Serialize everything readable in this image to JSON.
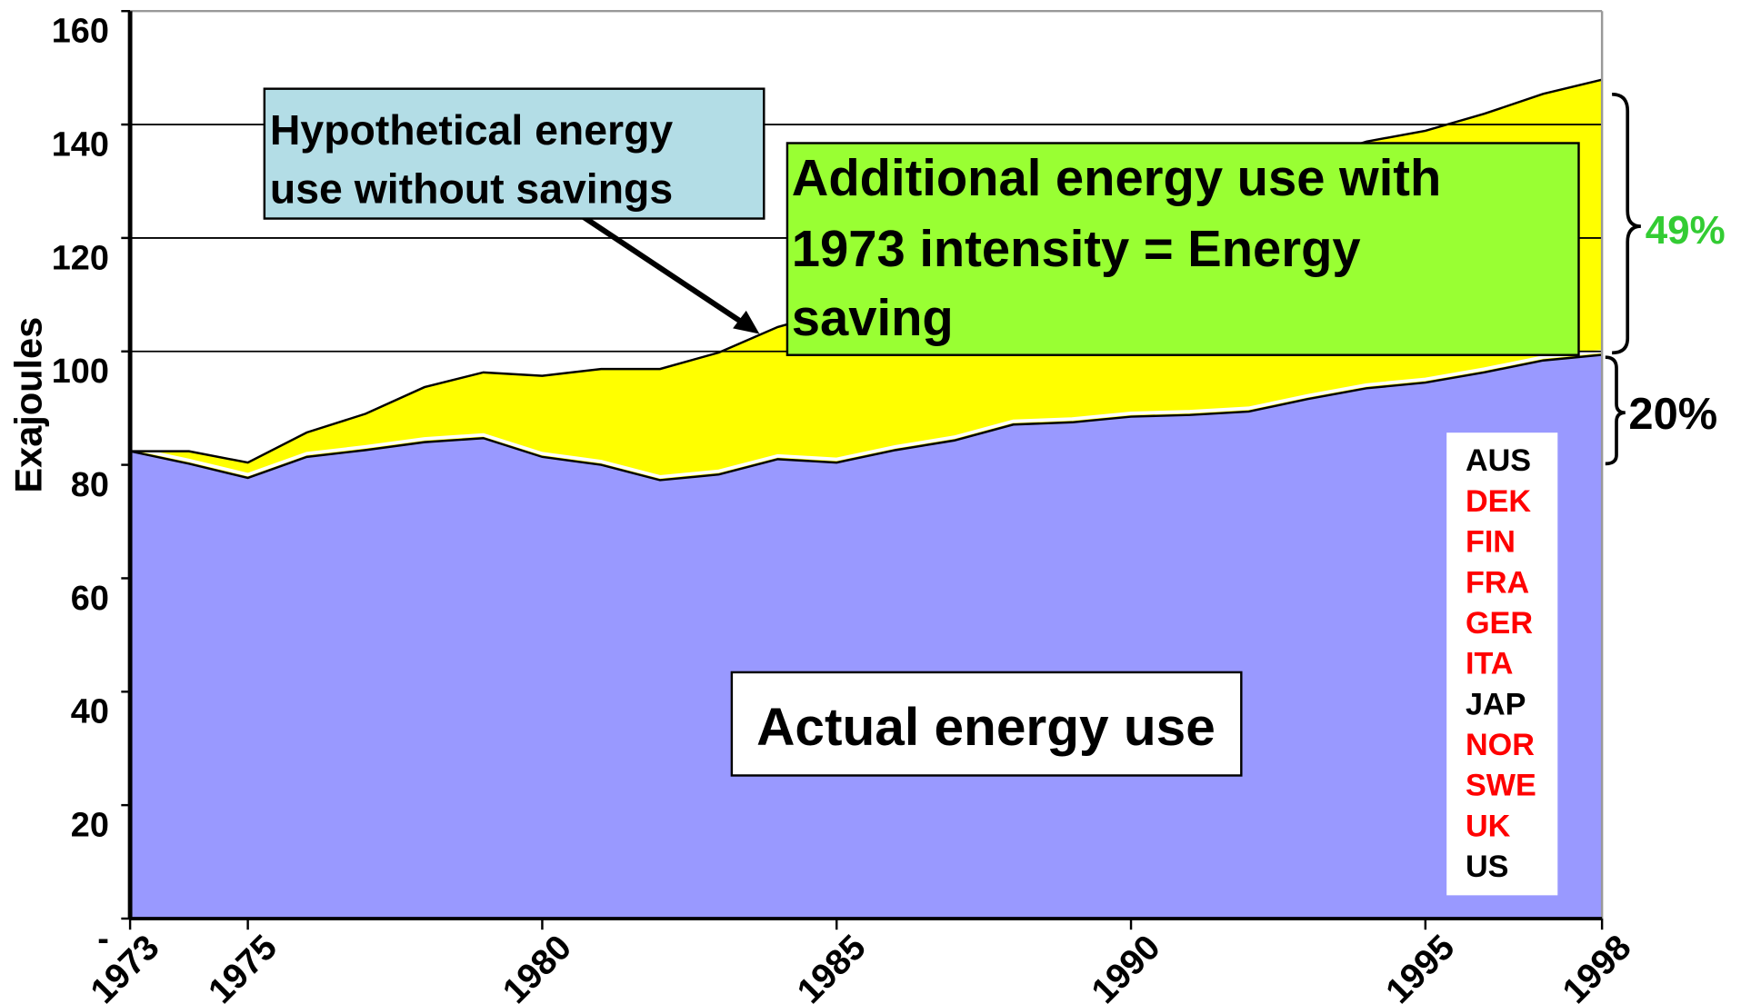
{
  "chart_data": {
    "type": "area",
    "y_label": "Exajoules",
    "x": [
      1973,
      1974,
      1975,
      1976,
      1977,
      1978,
      1979,
      1980,
      1981,
      1982,
      1983,
      1984,
      1985,
      1986,
      1987,
      1988,
      1989,
      1990,
      1991,
      1992,
      1993,
      1994,
      1995,
      1996,
      1997,
      1998
    ],
    "series": [
      {
        "name": "Actual energy use",
        "color": "#9999ff",
        "values": [
          82.4,
          80.2,
          77.7,
          81.4,
          82.6,
          84.0,
          84.7,
          81.4,
          80.0,
          77.3,
          78.3,
          81.0,
          80.4,
          82.6,
          84.3,
          87.1,
          87.5,
          88.5,
          88.8,
          89.4,
          91.6,
          93.5,
          94.5,
          96.3,
          98.4,
          99.4
        ]
      },
      {
        "name": "Hypothetical energy use without savings",
        "color": "#ffff00",
        "values": [
          82.4,
          82.4,
          80.4,
          85.7,
          89.0,
          93.7,
          96.3,
          95.7,
          96.9,
          96.9,
          99.8,
          104.3,
          107.2,
          110.5,
          113.8,
          117.1,
          120.4,
          123.8,
          127.1,
          130.4,
          133.7,
          137.0,
          138.9,
          141.9,
          145.4,
          147.9
        ]
      }
    ],
    "xlim": [
      1973,
      1998
    ],
    "xticks": [
      1973,
      1975,
      1980,
      1985,
      1990,
      1995,
      1998
    ],
    "ylim": [
      0,
      160
    ],
    "yticks": [
      {
        "value": 0,
        "label": "-"
      },
      20,
      40,
      60,
      80,
      100,
      120,
      140,
      160
    ],
    "ygrid": [
      100,
      120,
      140
    ],
    "annotations": {
      "hypothetical": [
        "Hypothetical energy",
        "use without savings"
      ],
      "saving": [
        "Additional energy use with",
        "1973 intensity = Energy",
        "saving"
      ],
      "actual": "Actual energy use",
      "saving_share": "49%",
      "actual_share": "20%"
    },
    "countries": [
      {
        "label": "AUS",
        "color": "#000000"
      },
      {
        "label": "DEK",
        "color": "#ff0000"
      },
      {
        "label": "FIN",
        "color": "#ff0000"
      },
      {
        "label": "FRA",
        "color": "#ff0000"
      },
      {
        "label": "GER",
        "color": "#ff0000"
      },
      {
        "label": "ITA",
        "color": "#ff0000"
      },
      {
        "label": "JAP",
        "color": "#000000"
      },
      {
        "label": "NOR",
        "color": "#ff0000"
      },
      {
        "label": "SWE",
        "color": "#ff0000"
      },
      {
        "label": "UK",
        "color": "#ff0000"
      },
      {
        "label": "US",
        "color": "#000000"
      }
    ]
  }
}
